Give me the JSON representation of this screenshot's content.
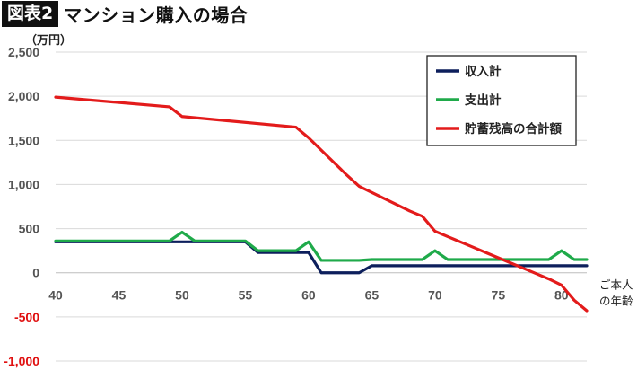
{
  "header": {
    "badge": "図表2",
    "title": "マンション購入の場合"
  },
  "chart_data": {
    "type": "line",
    "unit_label": "（万円）",
    "x_caption": [
      "ご本人",
      "の年齢"
    ],
    "xlim": [
      40,
      82
    ],
    "ylim": [
      -1000,
      2500
    ],
    "x_ticks": [
      40,
      45,
      50,
      55,
      60,
      65,
      70,
      75,
      80
    ],
    "y_ticks": [
      2500,
      2000,
      1500,
      1000,
      500,
      0,
      -500,
      -1000
    ],
    "y_tick_labels": [
      "2,500",
      "2,000",
      "1,500",
      "1,000",
      "500",
      "0",
      "-500",
      "-1,000"
    ],
    "grid": true,
    "legend_position": "top-right",
    "series": [
      {
        "name": "収入計",
        "color": "#0d1f5c",
        "x": [
          40,
          49,
          50,
          55,
          56,
          59,
          60,
          61,
          62,
          63,
          64,
          65,
          70,
          75,
          80,
          82
        ],
        "y": [
          350,
          350,
          350,
          350,
          230,
          230,
          230,
          0,
          0,
          0,
          0,
          80,
          80,
          80,
          80,
          80
        ]
      },
      {
        "name": "支出計",
        "color": "#1faa4a",
        "x": [
          40,
          49,
          50,
          51,
          55,
          56,
          59,
          60,
          61,
          64,
          65,
          69,
          70,
          71,
          79,
          80,
          81,
          82
        ],
        "y": [
          360,
          360,
          460,
          360,
          360,
          250,
          250,
          350,
          140,
          140,
          150,
          150,
          250,
          150,
          150,
          250,
          150,
          150
        ]
      },
      {
        "name": "貯蓄残高の合計額",
        "color": "#e31b1b",
        "x": [
          40,
          49,
          50,
          59,
          60,
          61,
          62,
          63,
          64,
          65,
          66,
          67,
          68,
          69,
          70,
          71,
          72,
          73,
          74,
          75,
          76,
          77,
          78,
          79,
          80,
          81,
          82
        ],
        "y": [
          1990,
          1880,
          1770,
          1650,
          1530,
          1390,
          1250,
          1110,
          980,
          910,
          840,
          770,
          700,
          640,
          470,
          410,
          350,
          290,
          230,
          170,
          110,
          50,
          -10,
          -70,
          -140,
          -310,
          -430
        ]
      }
    ]
  }
}
